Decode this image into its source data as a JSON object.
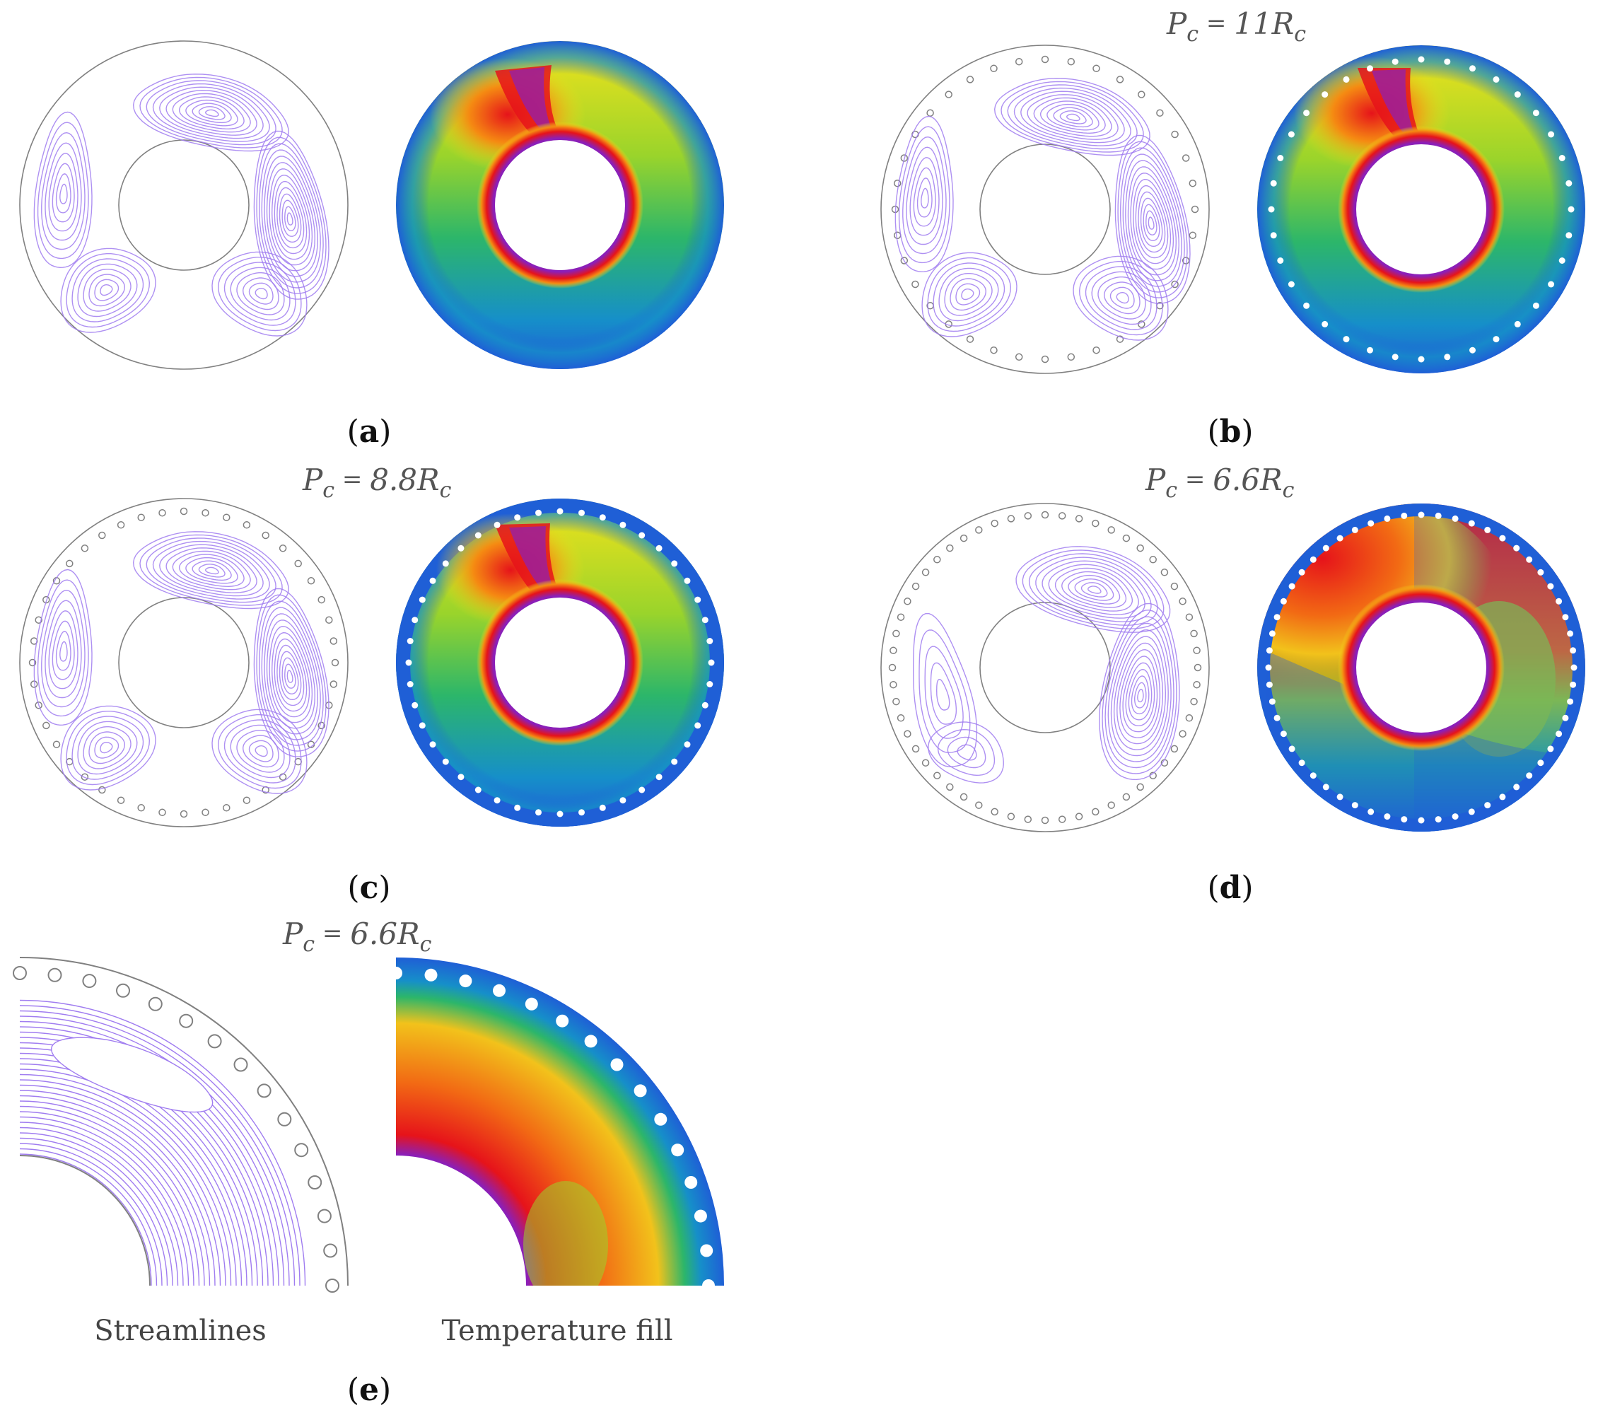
{
  "panels": [
    {
      "id": "a",
      "letter": "a",
      "pc_prefix": "",
      "pc_value": "",
      "pc_suffix": "",
      "hole_count": 0
    },
    {
      "id": "b",
      "letter": "b",
      "pc_prefix": "P",
      "pc_value": "11R",
      "pc_suffix": "c",
      "hole_count": 36
    },
    {
      "id": "c",
      "letter": "c",
      "pc_prefix": "P",
      "pc_value": "8.8R",
      "pc_suffix": "c",
      "hole_count": 44
    },
    {
      "id": "d",
      "letter": "d",
      "pc_prefix": "P",
      "pc_value": "6.6R",
      "pc_suffix": "c",
      "hole_count": 56
    },
    {
      "id": "e",
      "letter": "e",
      "pc_prefix": "P",
      "pc_value": "6.6R",
      "pc_suffix": "c",
      "hole_count": 56
    }
  ],
  "legend": {
    "streamlines": "Streamlines",
    "temperature": "Temperature fill"
  },
  "colors": {
    "streamline": "#a07df0",
    "outline": "#808080",
    "cold": "#1f5fd6",
    "hot": "#e6131a",
    "inner_wall": "#8b1fb8"
  }
}
